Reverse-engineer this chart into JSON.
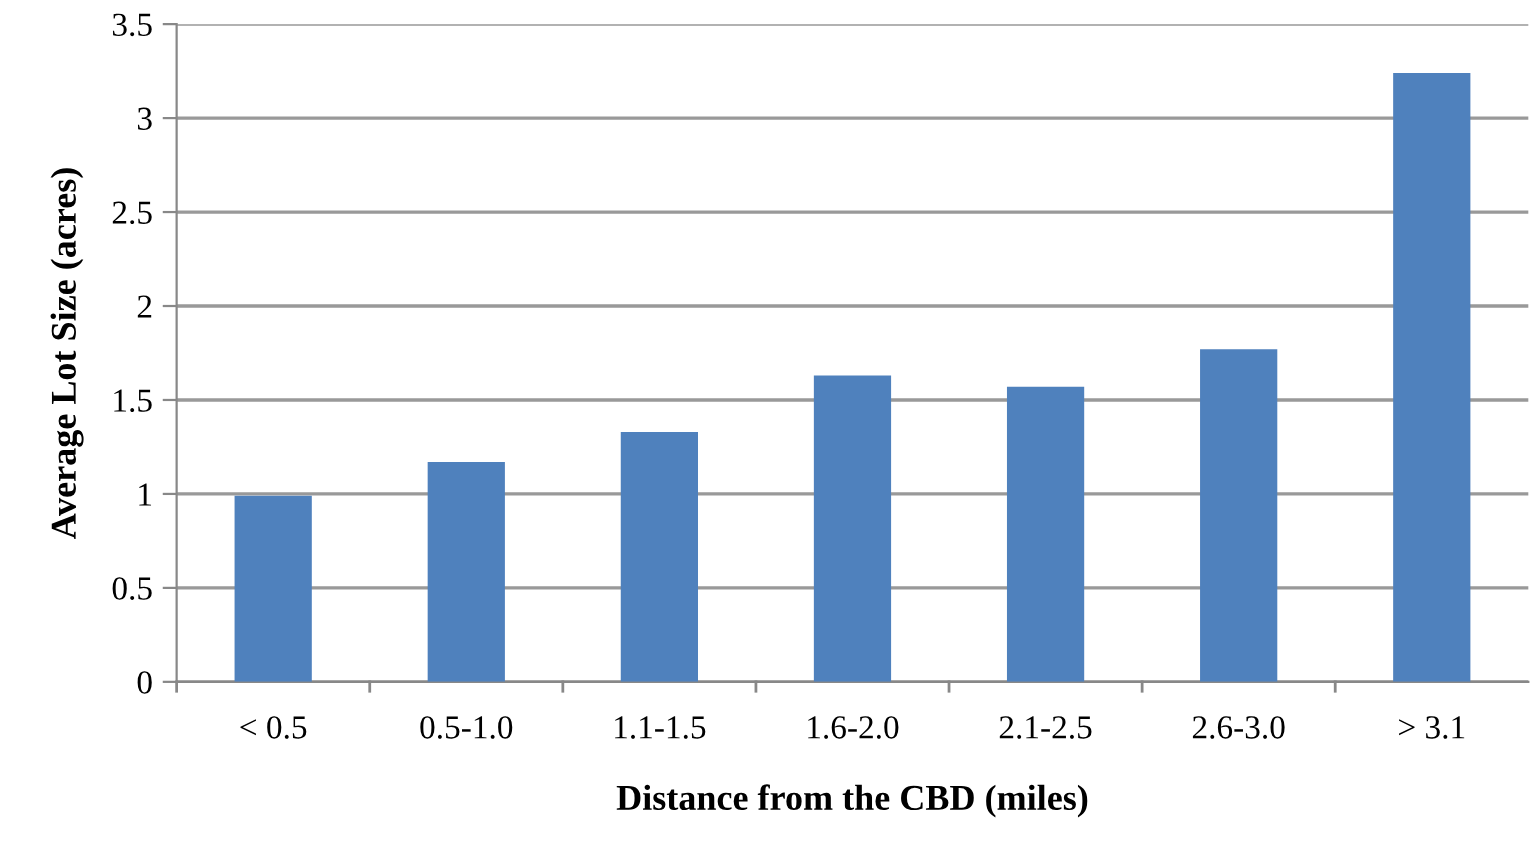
{
  "chart_data": {
    "type": "bar",
    "xlabel": "Distance from the CBD (miles)",
    "ylabel": "Average Lot Size (acres)",
    "categories": [
      "< 0.5",
      "0.5-1.0",
      "1.1-1.5",
      "1.6-2.0",
      "2.1-2.5",
      "2.6-3.0",
      "> 3.1"
    ],
    "values": [
      0.99,
      1.17,
      1.33,
      1.63,
      1.57,
      1.77,
      3.24
    ],
    "color": "#4f81bd",
    "ylim": [
      0,
      3.5
    ],
    "yticks": [
      0,
      0.5,
      1,
      1.5,
      2,
      2.5,
      3,
      3.5
    ],
    "grid": "y",
    "legend": false
  }
}
